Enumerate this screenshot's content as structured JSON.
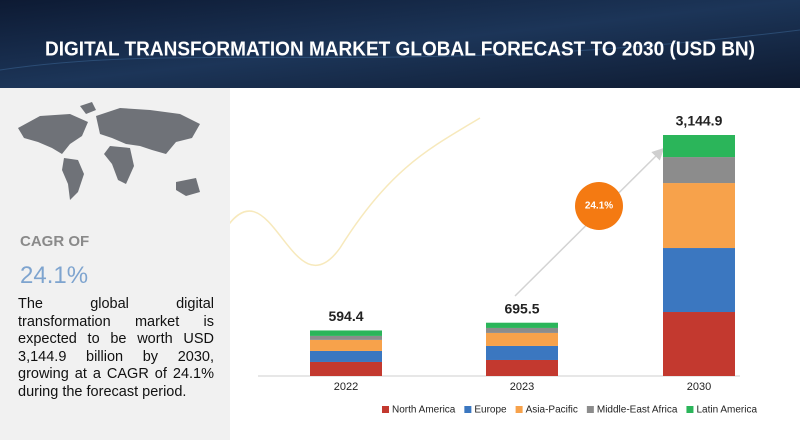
{
  "header": {
    "title": "DIGITAL TRANSFORMATION MARKET GLOBAL FORECAST TO 2030 (USD BN)"
  },
  "summary": {
    "cagr_label": "CAGR OF",
    "cagr_value": "24.1%",
    "description": "The global digital transformation market is expected to be worth USD 3,144.9 billion by 2030, growing at a CAGR of 24.1% during the forecast period."
  },
  "chart_data": {
    "type": "bar",
    "stacked": true,
    "categories": [
      "2022",
      "2023",
      "2030"
    ],
    "series": [
      {
        "name": "North America",
        "color": "#c3392f",
        "values": [
          183,
          209,
          835
        ]
      },
      {
        "name": "Europe",
        "color": "#3b77c0",
        "values": [
          144,
          183,
          835
        ]
      },
      {
        "name": "Asia-Pacific",
        "color": "#f7a24b",
        "values": [
          144,
          170,
          848
        ]
      },
      {
        "name": "Middle-East Africa",
        "color": "#8c8c8c",
        "values": [
          52,
          65,
          339
        ]
      },
      {
        "name": "Latin America",
        "color": "#2bb55a",
        "values": [
          71.4,
          68.5,
          287.9
        ]
      }
    ],
    "totals": [
      594.4,
      695.5,
      3144.9
    ],
    "total_labels": [
      "594.4",
      "695.5",
      "3,144.9"
    ],
    "annotation": "24.1%",
    "annotation_color": "#f47a12",
    "legend": "bottom"
  }
}
